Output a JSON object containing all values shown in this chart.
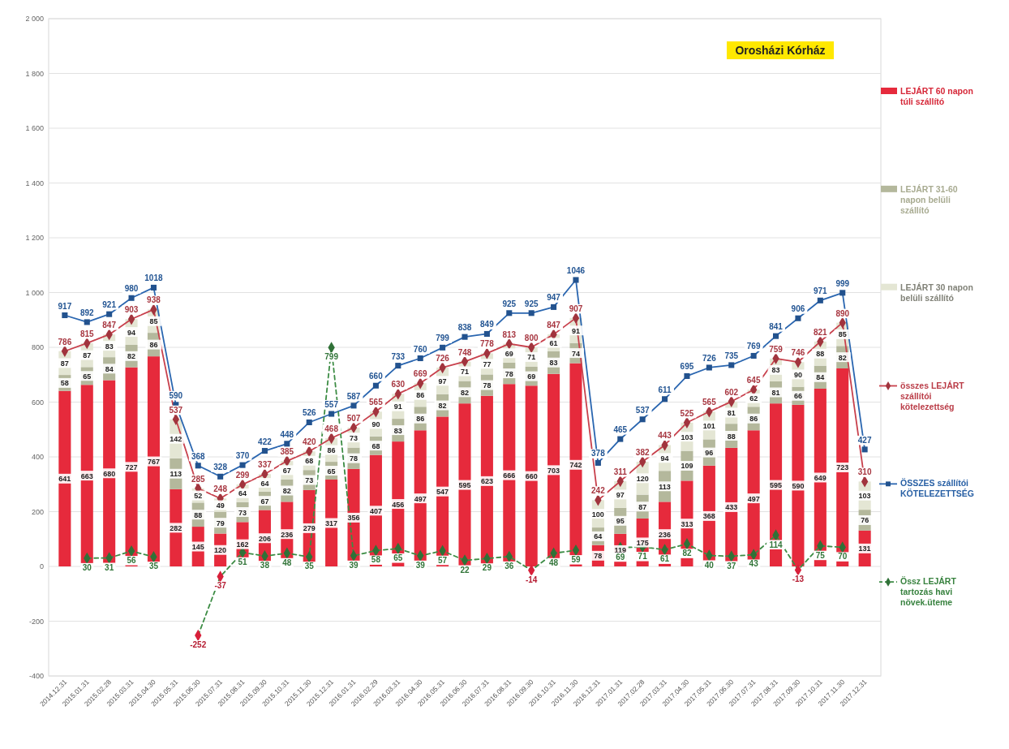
{
  "chart_data": {
    "type": "bar",
    "stacked": true,
    "grid": "y",
    "legend": "right",
    "data_labels": true,
    "annotations": [
      "Orosházi Kórház"
    ],
    "categories": [
      "2014.12.31",
      "2015.01.31",
      "2015.02.28",
      "2015.03.31",
      "2015.04.30",
      "2015.05.31",
      "2015.06.30",
      "2015.07.31",
      "2015.08.31",
      "2015.09.30",
      "2015.10.31",
      "2015.11.30",
      "2015.12.31",
      "2016.01.31",
      "2016.02.29",
      "2016.03.31",
      "2016.04.30",
      "2016.05.31",
      "2016.06.30",
      "2016.07.31",
      "2016.08.31",
      "2016.09.30",
      "2016.10.31",
      "2016.11.30",
      "2016.12.31",
      "2017.01.31",
      "2017.02.28",
      "2017.03.31",
      "2017.04.30",
      "2017.05.31",
      "2017.06.30",
      "2017.07.31",
      "2017.08.31",
      "2017.09.30",
      "2017.10.31",
      "2017.11.30",
      "2017.12.31"
    ],
    "ylim": [
      -400,
      2000
    ],
    "yticks": [
      {
        "value": 2000,
        "label": "2 000"
      },
      {
        "value": 1800,
        "label": "1 800"
      },
      {
        "value": 1600,
        "label": "1 600"
      },
      {
        "value": 1400,
        "label": "1 400"
      },
      {
        "value": 1200,
        "label": "1 200"
      },
      {
        "value": 1000,
        "label": "1 000"
      },
      800,
      600,
      400,
      200,
      0,
      -200,
      -400
    ],
    "series": [
      {
        "name": "LEJÁRT 60 napon túli szállító",
        "color": "#e62a3c",
        "values": [
          641,
          663,
          680,
          727,
          767,
          282,
          145,
          120,
          162,
          206,
          236,
          279,
          317,
          356,
          407,
          456,
          497,
          547,
          595,
          623,
          666,
          660,
          703,
          742,
          78,
          119,
          175,
          236,
          313,
          368,
          433,
          497,
          595,
          590,
          649,
          723,
          131
        ]
      },
      {
        "name": "LEJÁRT 31-60 napon belüli szállító",
        "color": "#b4b89c",
        "values": [
          58,
          65,
          84,
          82,
          86,
          113,
          88,
          79,
          73,
          67,
          82,
          73,
          65,
          78,
          68,
          83,
          86,
          82,
          82,
          78,
          78,
          69,
          83,
          74,
          64,
          95,
          87,
          113,
          109,
          96,
          88,
          86,
          81,
          66,
          84,
          82,
          76
        ]
      },
      {
        "name": "LEJÁRT 30 napon belüli szállító",
        "color": "#e4e6d4",
        "values": [
          87,
          87,
          83,
          94,
          85,
          142,
          52,
          49,
          64,
          64,
          67,
          68,
          86,
          73,
          90,
          91,
          86,
          97,
          71,
          77,
          69,
          71,
          61,
          91,
          100,
          97,
          120,
          94,
          103,
          101,
          81,
          62,
          83,
          90,
          88,
          85,
          103
        ]
      },
      {
        "name": "összes LEJÁRT szállítói kötelezettség",
        "type": "line",
        "color": "#c8404c",
        "marker": "diamond",
        "line_style": "solid",
        "values": [
          786,
          815,
          847,
          903,
          938,
          537,
          285,
          248,
          299,
          337,
          385,
          420,
          468,
          507,
          565,
          630,
          669,
          726,
          748,
          778,
          813,
          800,
          847,
          907,
          242,
          311,
          382,
          443,
          525,
          565,
          602,
          645,
          759,
          746,
          821,
          890,
          310
        ]
      },
      {
        "name": "ÖSSZES szállítói KÖTELEZETTSÉG",
        "type": "line",
        "color": "#2a66b0",
        "marker": "square",
        "line_style": "solid",
        "values": [
          917,
          892,
          921,
          980,
          1018,
          590,
          368,
          328,
          370,
          422,
          448,
          526,
          557,
          587,
          660,
          733,
          760,
          799,
          838,
          849,
          925,
          925,
          947,
          1046,
          378,
          465,
          537,
          611,
          695,
          726,
          735,
          769,
          841,
          906,
          971,
          999,
          427
        ]
      },
      {
        "name": "Össz LEJÁRT tartozás havi növek.üteme",
        "type": "line",
        "color": "#3c8c44",
        "marker": "diamond",
        "line_style": "dashed",
        "values": [
          null,
          30,
          31,
          56,
          35,
          null,
          -252,
          -37,
          51,
          38,
          48,
          35,
          799,
          39,
          58,
          65,
          39,
          57,
          22,
          29,
          36,
          -14,
          48,
          59,
          null,
          69,
          71,
          61,
          82,
          40,
          37,
          43,
          114,
          -13,
          75,
          70,
          null
        ]
      }
    ]
  }
}
